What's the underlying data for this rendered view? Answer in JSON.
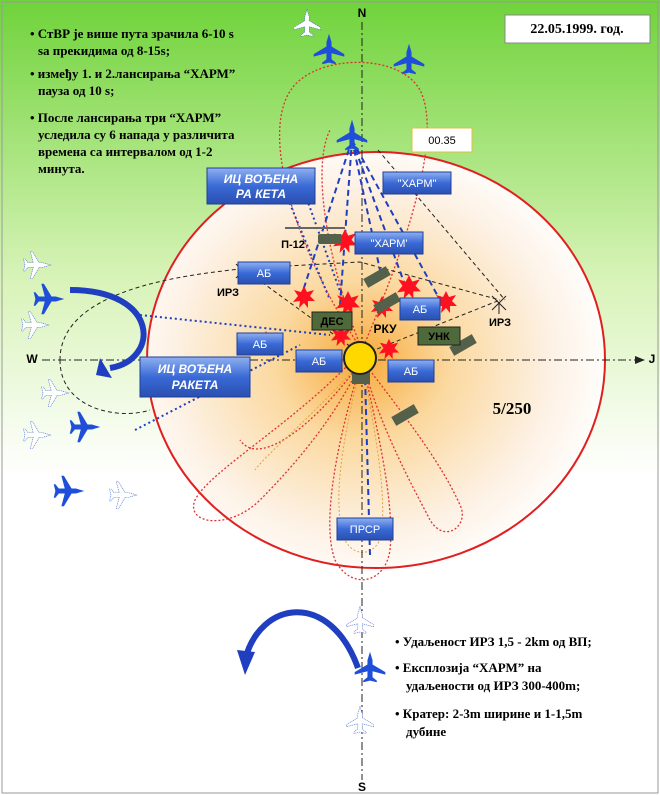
{
  "date": "22.05.1999. год.",
  "notes_top": [
    [
      "• СтВР је више пута зрачила 6-10 s",
      "sa прекидима од  8-15s;"
    ],
    [
      "• између 1. и 2.лансирања “ХАРМ”",
      "пауза од 10 s;"
    ],
    [
      "• После лансирања три “ХАРМ”",
      "уследила су  6 напада у различита",
      "времена са  интервалом од 1-2",
      "минута."
    ]
  ],
  "compass": {
    "n": "N",
    "w": "W",
    "e": "J",
    "s": "S"
  },
  "time": "00.35",
  "labels": {
    "missile_top": [
      "ИЦ ВОЂЕНА",
      "РА КЕТА"
    ],
    "harm_1": "\"ХАРМ\"",
    "harm_2": "\"ХАРМ'",
    "p12": "П-12",
    "ab": [
      "АБ",
      "АБ",
      "АБ",
      "АБ",
      "АБ"
    ],
    "irz": [
      "ИРЗ",
      "ИРЗ"
    ],
    "des": "ДЕС",
    "rku": "РКУ",
    "unk": "УНК",
    "missile_left": [
      "ИЦ ВОЂЕНА",
      "РАКЕТА"
    ],
    "range": "5/250",
    "prsr": "ПРСР"
  },
  "notes_bottom": [
    [
      "•  Удаљеност ИРЗ 1,5 - 2km од ВП;"
    ],
    [
      "• Експлозија “ХАРМ” на",
      "удаљености од ИРЗ 300-400m;"
    ],
    [
      "• Кратер: 2-3m ширине и 1-1,5m",
      "дубине"
    ]
  ]
}
